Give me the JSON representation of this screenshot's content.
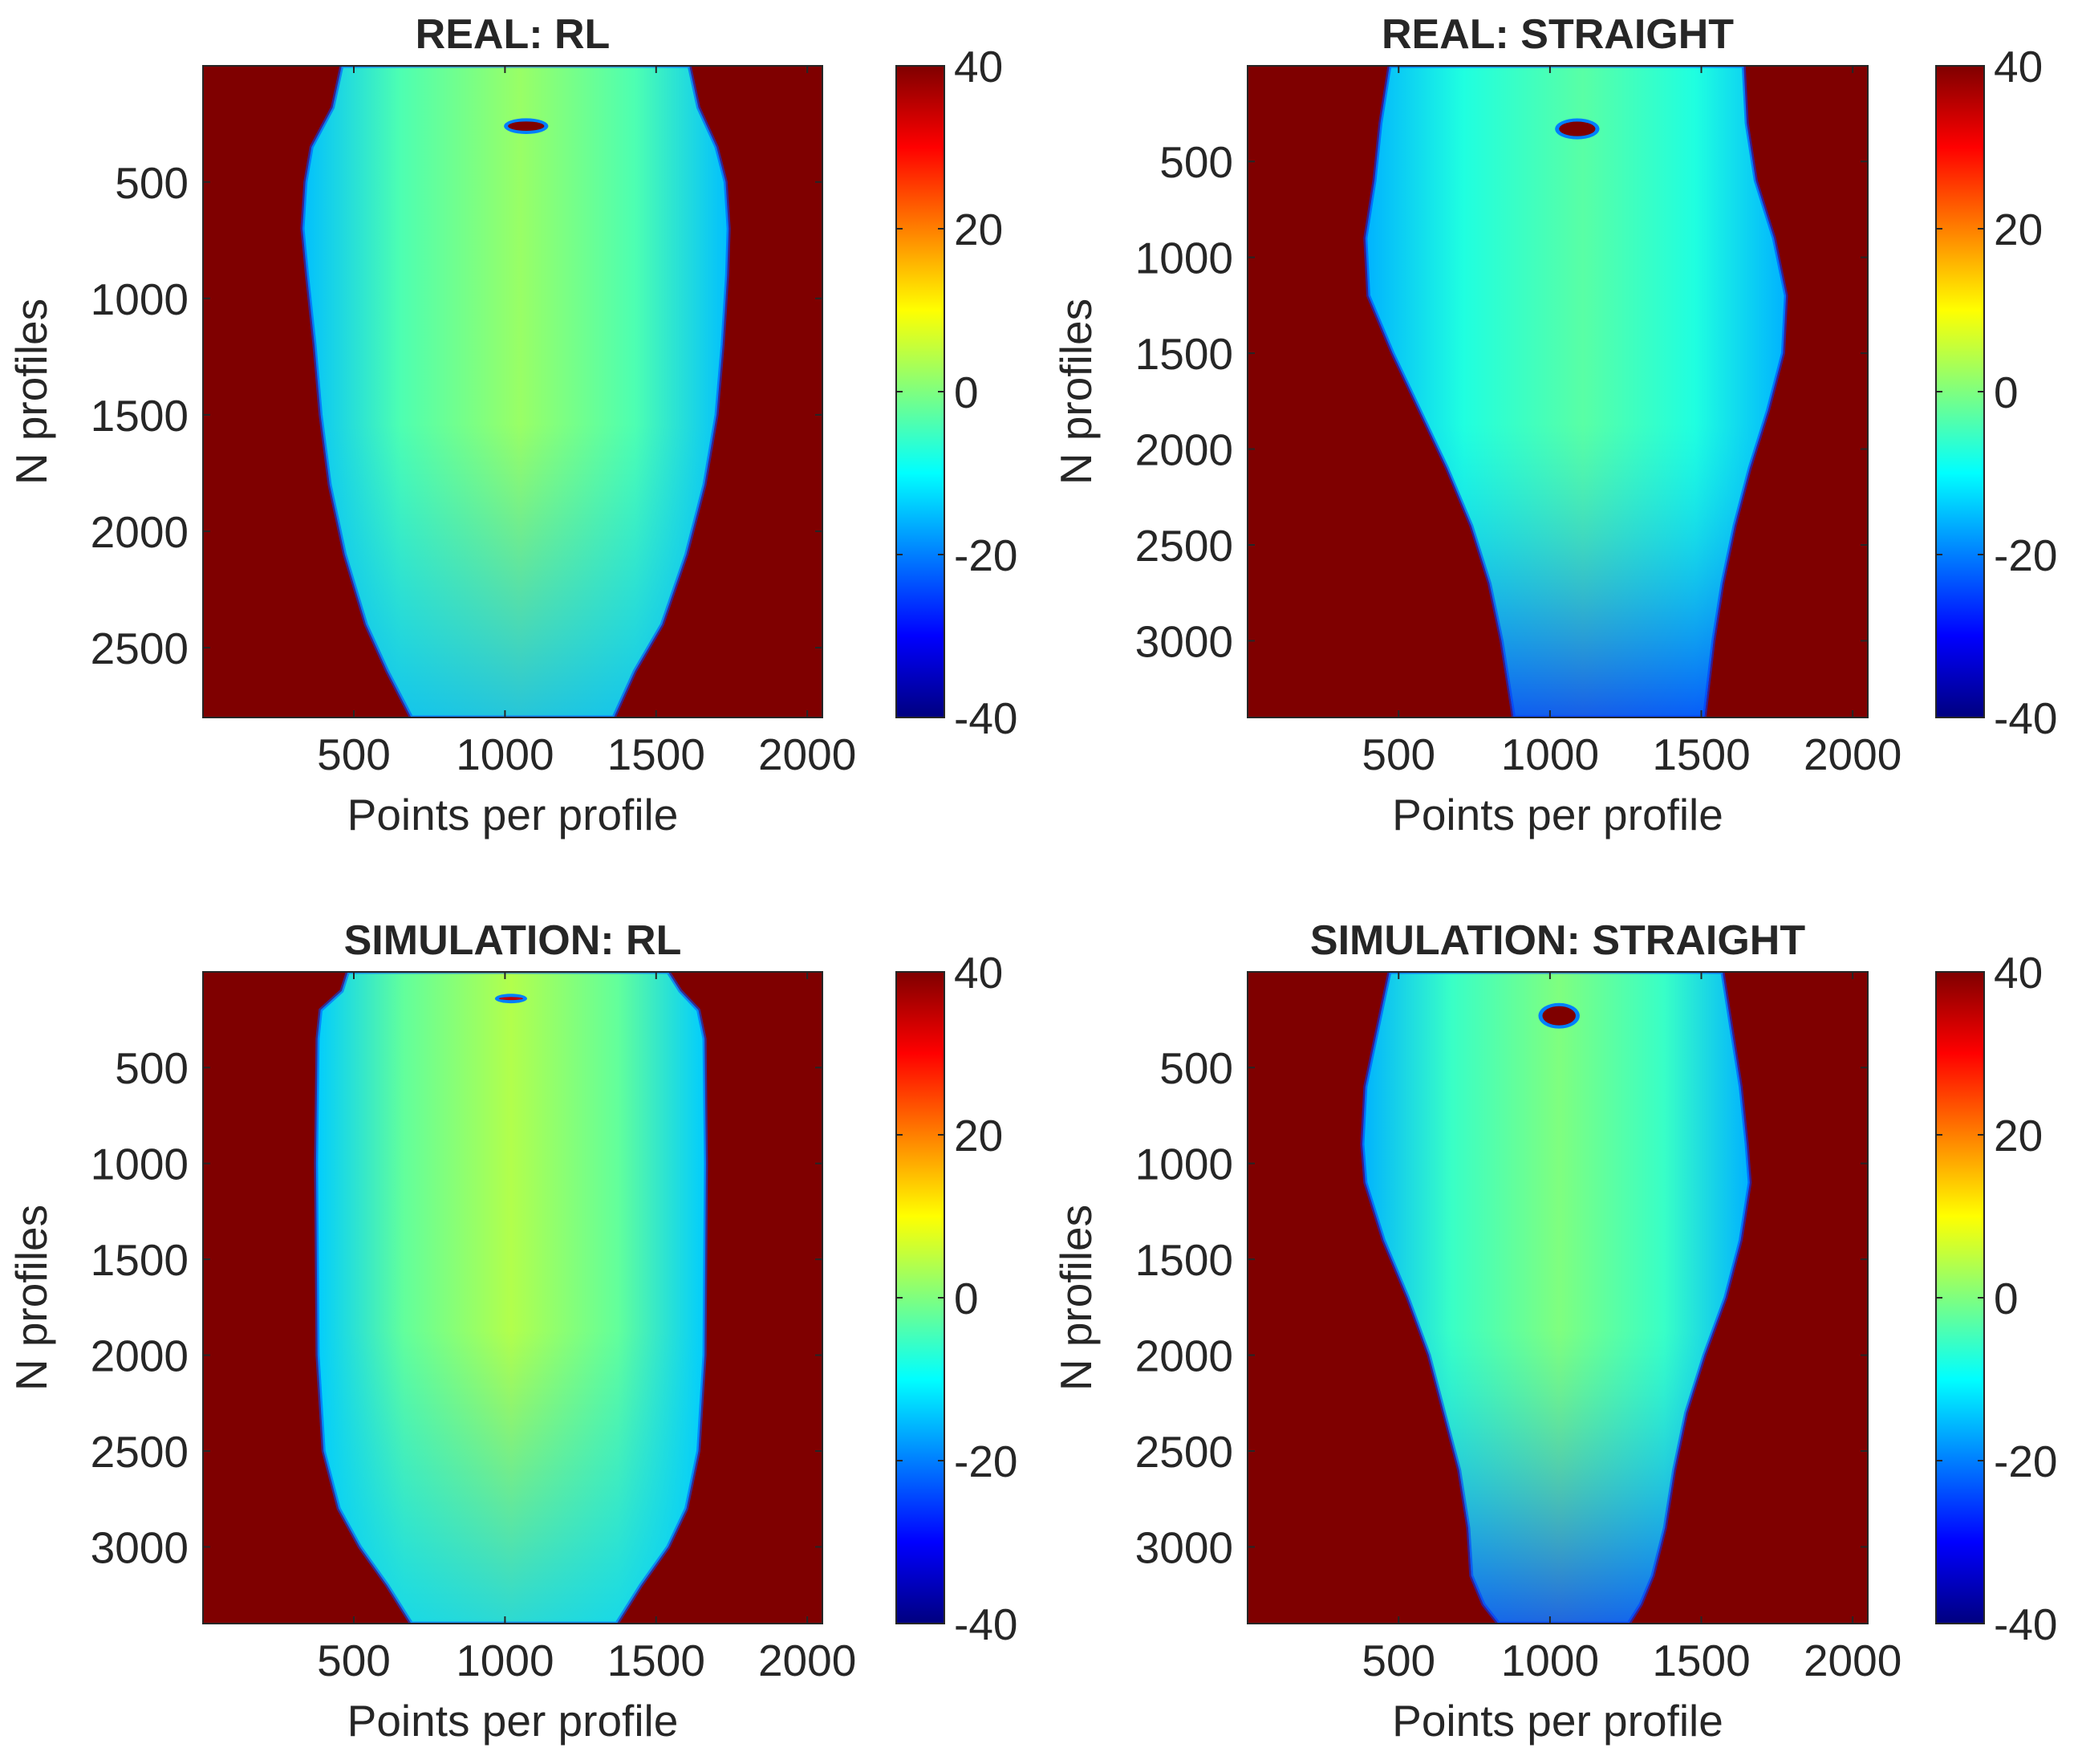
{
  "figure": {
    "background": "#ffffff",
    "axis_color": "#262626"
  },
  "colormap": {
    "name": "jet",
    "stops": [
      "#00007f",
      "#0000ff",
      "#007fff",
      "#00ffff",
      "#7fff7f",
      "#ffff00",
      "#ff7f00",
      "#ff0000",
      "#7f0000"
    ],
    "background_color": "#7f0000"
  },
  "chart_data": [
    {
      "type": "heatmap",
      "title": "REAL: RL",
      "xlabel": "Points per profile",
      "ylabel": "N profiles",
      "xlim": [
        1,
        2050
      ],
      "ylim": [
        1,
        2800
      ],
      "x_ticks": [
        500,
        1000,
        1500,
        2000
      ],
      "y_ticks": [
        500,
        1000,
        1500,
        2000,
        2500
      ],
      "x_tick_labels": [
        "500",
        "1000",
        "1500",
        "2000"
      ],
      "y_tick_labels": [
        "500",
        "1000",
        "1500",
        "2000",
        "2500"
      ],
      "clim": [
        -40,
        40
      ],
      "colorbar_ticks": [
        -40,
        -20,
        0,
        20,
        40
      ],
      "colorbar_labels": [
        "-40",
        "-20",
        "0",
        "20",
        "40"
      ],
      "outside_value": 40,
      "center_x": 1050,
      "center_value": 2,
      "edge_value": -15,
      "bottom_edge_value": -16,
      "profile": [
        [
          1,
          460,
          1610
        ],
        [
          180,
          430,
          1640
        ],
        [
          350,
          360,
          1700
        ],
        [
          500,
          340,
          1730
        ],
        [
          700,
          330,
          1740
        ],
        [
          900,
          345,
          1735
        ],
        [
          1200,
          370,
          1720
        ],
        [
          1500,
          390,
          1700
        ],
        [
          1800,
          420,
          1660
        ],
        [
          2100,
          470,
          1600
        ],
        [
          2400,
          540,
          1520
        ],
        [
          2600,
          610,
          1430
        ],
        [
          2800,
          690,
          1360
        ]
      ],
      "marker": {
        "x": 1070,
        "y": 260,
        "rx": 60,
        "ry": 20,
        "value": 40
      }
    },
    {
      "type": "heatmap",
      "title": "REAL: STRAIGHT",
      "xlabel": "Points per profile",
      "ylabel": "N profiles",
      "xlim": [
        1,
        2050
      ],
      "ylim": [
        1,
        3400
      ],
      "x_ticks": [
        500,
        1000,
        1500,
        2000
      ],
      "y_ticks": [
        500,
        1000,
        1500,
        2000,
        2500,
        3000
      ],
      "x_tick_labels": [
        "500",
        "1000",
        "1500",
        "2000"
      ],
      "y_tick_labels": [
        "500",
        "1000",
        "1500",
        "2000",
        "2500",
        "3000"
      ],
      "clim": [
        -40,
        40
      ],
      "colorbar_ticks": [
        -40,
        -20,
        0,
        20,
        40
      ],
      "colorbar_labels": [
        "-40",
        "-20",
        "0",
        "20",
        "40"
      ],
      "outside_value": 40,
      "center_x": 1110,
      "center_value": -3,
      "edge_value": -16,
      "bottom_edge_value": -27,
      "profile": [
        [
          1,
          470,
          1640
        ],
        [
          300,
          440,
          1650
        ],
        [
          600,
          420,
          1680
        ],
        [
          900,
          390,
          1740
        ],
        [
          1200,
          400,
          1780
        ],
        [
          1500,
          480,
          1770
        ],
        [
          1800,
          570,
          1720
        ],
        [
          2100,
          660,
          1660
        ],
        [
          2400,
          740,
          1610
        ],
        [
          2700,
          800,
          1570
        ],
        [
          3000,
          840,
          1540
        ],
        [
          3400,
          880,
          1510
        ]
      ],
      "marker": {
        "x": 1090,
        "y": 330,
        "rx": 60,
        "ry": 38,
        "value": 40
      }
    },
    {
      "type": "heatmap",
      "title": "SIMULATION: RL",
      "xlabel": "Points per profile",
      "ylabel": "N profiles",
      "xlim": [
        1,
        2050
      ],
      "ylim": [
        1,
        3400
      ],
      "x_ticks": [
        500,
        1000,
        1500,
        2000
      ],
      "y_ticks": [
        500,
        1000,
        1500,
        2000,
        2500,
        3000
      ],
      "x_tick_labels": [
        "500",
        "1000",
        "1500",
        "2000"
      ],
      "y_tick_labels": [
        "500",
        "1000",
        "1500",
        "2000",
        "2500",
        "3000"
      ],
      "clim": [
        -40,
        40
      ],
      "colorbar_ticks": [
        -40,
        -20,
        0,
        20,
        40
      ],
      "colorbar_labels": [
        "-40",
        "-20",
        "0",
        "20",
        "40"
      ],
      "outside_value": 40,
      "center_x": 1020,
      "center_value": 4,
      "edge_value": -14,
      "bottom_edge_value": -14,
      "profile": [
        [
          1,
          480,
          1540
        ],
        [
          100,
          460,
          1580
        ],
        [
          200,
          390,
          1640
        ],
        [
          350,
          380,
          1660
        ],
        [
          1000,
          375,
          1665
        ],
        [
          2000,
          380,
          1660
        ],
        [
          2500,
          400,
          1640
        ],
        [
          2800,
          450,
          1600
        ],
        [
          3000,
          520,
          1540
        ],
        [
          3200,
          610,
          1450
        ],
        [
          3400,
          690,
          1370
        ]
      ],
      "marker": {
        "x": 1020,
        "y": 140,
        "rx": 40,
        "ry": 8,
        "value": 35
      }
    },
    {
      "type": "heatmap",
      "title": "SIMULATION: STRAIGHT",
      "xlabel": "Points per profile",
      "ylabel": "N profiles",
      "xlim": [
        1,
        2050
      ],
      "ylim": [
        1,
        3400
      ],
      "x_ticks": [
        500,
        1000,
        1500,
        2000
      ],
      "y_ticks": [
        500,
        1000,
        1500,
        2000,
        2500,
        3000
      ],
      "x_tick_labels": [
        "500",
        "1000",
        "1500",
        "2000"
      ],
      "y_tick_labels": [
        "500",
        "1000",
        "1500",
        "2000",
        "2500",
        "3000"
      ],
      "clim": [
        -40,
        40
      ],
      "colorbar_ticks": [
        -40,
        -20,
        0,
        20,
        40
      ],
      "colorbar_labels": [
        "-40",
        "-20",
        "0",
        "20",
        "40"
      ],
      "outside_value": 40,
      "center_x": 1030,
      "center_value": 0,
      "edge_value": -16,
      "bottom_edge_value": -26,
      "profile": [
        [
          1,
          470,
          1570
        ],
        [
          300,
          430,
          1600
        ],
        [
          600,
          390,
          1630
        ],
        [
          900,
          380,
          1650
        ],
        [
          1100,
          390,
          1660
        ],
        [
          1400,
          450,
          1630
        ],
        [
          1700,
          530,
          1580
        ],
        [
          2000,
          600,
          1510
        ],
        [
          2300,
          650,
          1450
        ],
        [
          2600,
          700,
          1410
        ],
        [
          2900,
          730,
          1380
        ],
        [
          3150,
          740,
          1340
        ],
        [
          3300,
          780,
          1300
        ],
        [
          3400,
          830,
          1260
        ]
      ],
      "marker": {
        "x": 1030,
        "y": 230,
        "rx": 55,
        "ry": 50,
        "value": 40
      }
    }
  ]
}
